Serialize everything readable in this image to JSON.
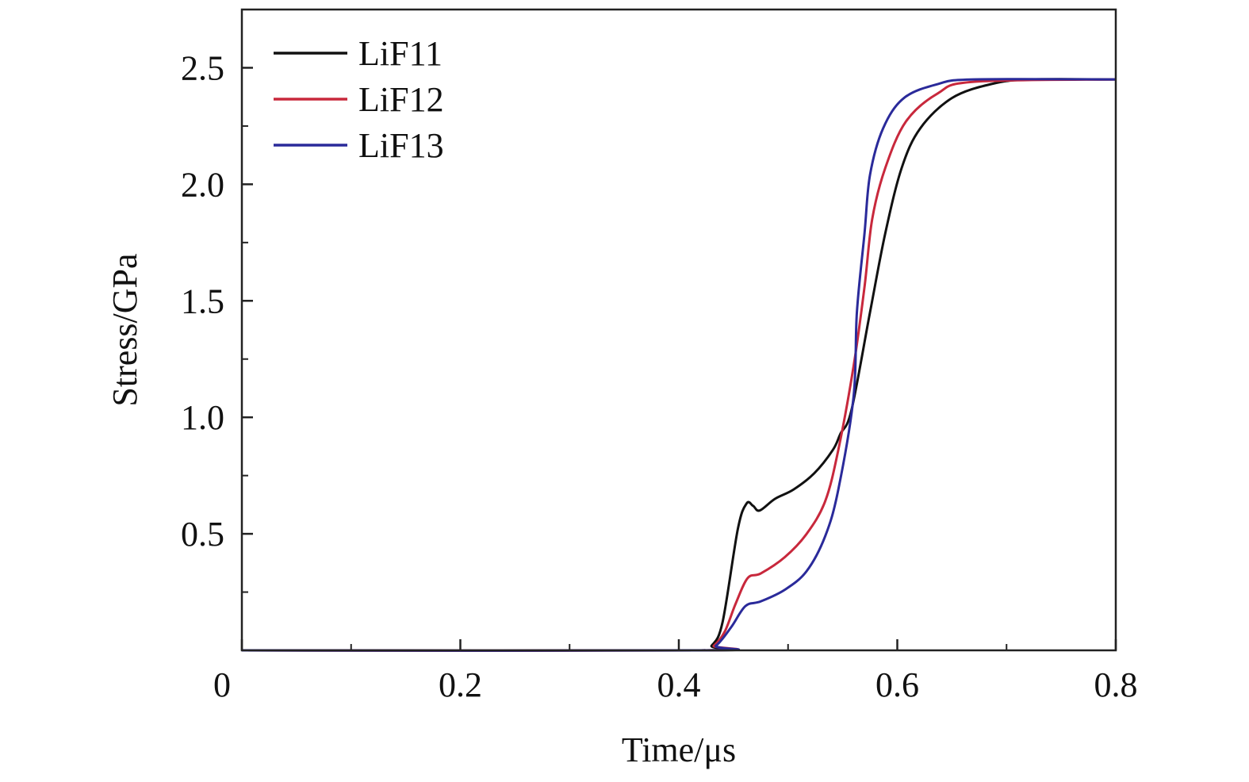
{
  "chart_data": {
    "type": "line",
    "xlabel": "Time/μs",
    "ylabel": "Stress/GPa",
    "xlim": [
      0,
      0.8
    ],
    "ylim": [
      0,
      2.75
    ],
    "x_ticks": [
      0,
      0.2,
      0.4,
      0.6,
      0.8
    ],
    "x_tick_labels": [
      "0",
      "0.2",
      "0.4",
      "0.6",
      "0.8"
    ],
    "y_ticks": [
      0.5,
      1.0,
      1.5,
      2.0,
      2.5
    ],
    "y_tick_labels": [
      "0.5",
      "1.0",
      "1.5",
      "2.0",
      "2.5"
    ],
    "x_minor_ticks": [
      0.1,
      0.3,
      0.5,
      0.7
    ],
    "y_minor_ticks": [
      0.25,
      0.75,
      1.25,
      1.75,
      2.25
    ],
    "grid": false,
    "legend_position": "top-left",
    "series": [
      {
        "name": "LiF11",
        "color": "#111111",
        "x": [
          0,
          0.42,
          0.43,
          0.44,
          0.454,
          0.462,
          0.468,
          0.474,
          0.488,
          0.505,
          0.524,
          0.541,
          0.548,
          0.558,
          0.575,
          0.589,
          0.604,
          0.621,
          0.65,
          0.686,
          0.722,
          0.8
        ],
        "y": [
          0,
          0,
          0.02,
          0.12,
          0.52,
          0.63,
          0.62,
          0.6,
          0.65,
          0.69,
          0.76,
          0.86,
          0.93,
          1.03,
          1.45,
          1.79,
          2.07,
          2.24,
          2.37,
          2.43,
          2.45,
          2.45
        ]
      },
      {
        "name": "LiF12",
        "color": "#c8283c",
        "x": [
          0,
          0.42,
          0.432,
          0.442,
          0.452,
          0.463,
          0.475,
          0.497,
          0.517,
          0.534,
          0.546,
          0.56,
          0.57,
          0.577,
          0.589,
          0.608,
          0.637,
          0.67,
          0.8
        ],
        "y": [
          0,
          0,
          0.02,
          0.08,
          0.2,
          0.31,
          0.33,
          0.4,
          0.5,
          0.64,
          0.86,
          1.22,
          1.56,
          1.85,
          2.07,
          2.27,
          2.39,
          2.44,
          2.45
        ]
      },
      {
        "name": "LiF13",
        "color": "#2a2a9a",
        "x": [
          0,
          0.42,
          0.434,
          0.448,
          0.461,
          0.475,
          0.497,
          0.517,
          0.534,
          0.546,
          0.56,
          0.563,
          0.57,
          0.575,
          0.587,
          0.606,
          0.637,
          0.67,
          0.8
        ],
        "y": [
          0,
          0,
          0.02,
          0.1,
          0.19,
          0.21,
          0.26,
          0.34,
          0.49,
          0.69,
          1.09,
          1.45,
          1.79,
          2.04,
          2.24,
          2.37,
          2.43,
          2.45,
          2.45
        ]
      }
    ]
  }
}
